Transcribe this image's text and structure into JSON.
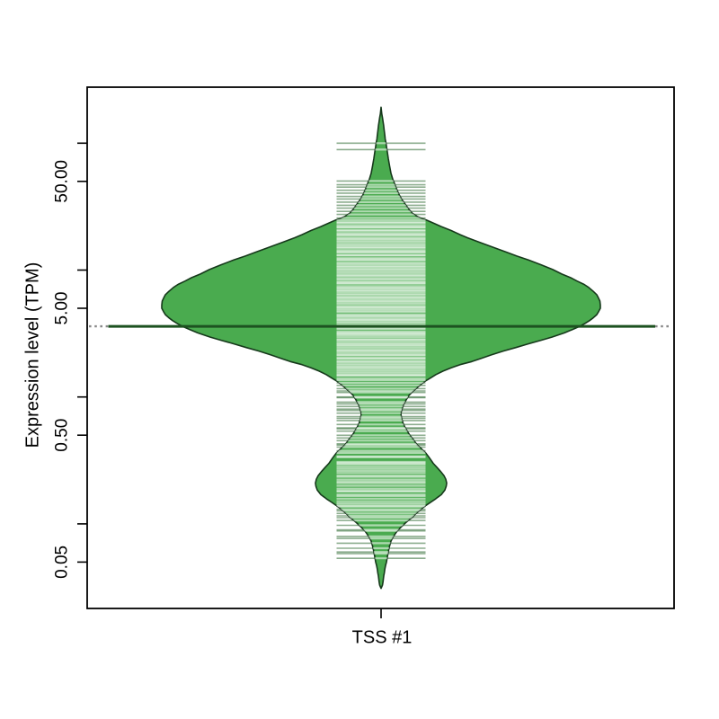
{
  "chart_data": {
    "type": "violin",
    "title": "",
    "categories": [
      "TSS #1"
    ],
    "y_axis": {
      "label": "Expression level (TPM)",
      "scale": "log10",
      "range_tpm": [
        0.03,
        220
      ],
      "ticks": [
        {
          "value": 100,
          "label": ""
        },
        {
          "value": 50,
          "label": "50.00"
        },
        {
          "value": 10,
          "label": ""
        },
        {
          "value": 5,
          "label": "5.00"
        },
        {
          "value": 1,
          "label": ""
        },
        {
          "value": 0.5,
          "label": "0.50"
        },
        {
          "value": 0.1,
          "label": ""
        },
        {
          "value": 0.05,
          "label": "0.05"
        }
      ]
    },
    "x_axis": {
      "category": "TSS #1"
    },
    "series": [
      {
        "name": "TSS #1",
        "median_tpm": 3.6,
        "violin_profile_tpm_halfwidth": [
          [
            192,
            0
          ],
          [
            170,
            0.8
          ],
          [
            160,
            1.5
          ],
          [
            148,
            2.2
          ],
          [
            139,
            2.8
          ],
          [
            126,
            3.5
          ],
          [
            115,
            4.2
          ],
          [
            108,
            4.6
          ],
          [
            100,
            5.5
          ],
          [
            92,
            6.2
          ],
          [
            85,
            7
          ],
          [
            76,
            8
          ],
          [
            66,
            9.5
          ],
          [
            58,
            11
          ],
          [
            52,
            13
          ],
          [
            47,
            15.5
          ],
          [
            44,
            17
          ],
          [
            40,
            19.5
          ],
          [
            36,
            23
          ],
          [
            33,
            27
          ],
          [
            30,
            31
          ],
          [
            28,
            35
          ],
          [
            26.5,
            40
          ],
          [
            25.5,
            45
          ],
          [
            24.9,
            50
          ],
          [
            23.5,
            58
          ],
          [
            22,
            67
          ],
          [
            20.5,
            78
          ],
          [
            19,
            88
          ],
          [
            18,
            96
          ],
          [
            16.5,
            110
          ],
          [
            15,
            126
          ],
          [
            13.8,
            140
          ],
          [
            12.9,
            151
          ],
          [
            12,
            164
          ],
          [
            11,
            178
          ],
          [
            10.1,
            191
          ],
          [
            9.3,
            201
          ],
          [
            8.7,
            211
          ],
          [
            8.2,
            218
          ],
          [
            7.7,
            226
          ],
          [
            7.3,
            231
          ],
          [
            6.8,
            236
          ],
          [
            6.4,
            240
          ],
          [
            6.0,
            242
          ],
          [
            5.7,
            243.5
          ],
          [
            5.3,
            244
          ],
          [
            5.0,
            244
          ],
          [
            4.7,
            242
          ],
          [
            4.45,
            240
          ],
          [
            4.2,
            236
          ],
          [
            4.0,
            232
          ],
          [
            3.8,
            227
          ],
          [
            3.6,
            221
          ],
          [
            3.4,
            213
          ],
          [
            3.2,
            204
          ],
          [
            3.08,
            197
          ],
          [
            2.96,
            190
          ],
          [
            2.8,
            178
          ],
          [
            2.6,
            162
          ],
          [
            2.45,
            150
          ],
          [
            2.3,
            136
          ],
          [
            2.15,
            123
          ],
          [
            2.0,
            110
          ],
          [
            1.9,
            101
          ],
          [
            1.8,
            88
          ],
          [
            1.7,
            78
          ],
          [
            1.6,
            69
          ],
          [
            1.5,
            61
          ],
          [
            1.41,
            55
          ],
          [
            1.33,
            49
          ],
          [
            1.25,
            44
          ],
          [
            1.18,
            40
          ],
          [
            1.1,
            35
          ],
          [
            1.03,
            31
          ],
          [
            0.95,
            28
          ],
          [
            0.87,
            25
          ],
          [
            0.8,
            23.2
          ],
          [
            0.74,
            22
          ],
          [
            0.68,
            22.8
          ],
          [
            0.62,
            24.5
          ],
          [
            0.58,
            26.5
          ],
          [
            0.54,
            29
          ],
          [
            0.5,
            32
          ],
          [
            0.46,
            36
          ],
          [
            0.42,
            40
          ],
          [
            0.39,
            45
          ],
          [
            0.36,
            50
          ],
          [
            0.33,
            54
          ],
          [
            0.3,
            58
          ],
          [
            0.28,
            62
          ],
          [
            0.26,
            66
          ],
          [
            0.24,
            70
          ],
          [
            0.225,
            72
          ],
          [
            0.21,
            73
          ],
          [
            0.198,
            72.5
          ],
          [
            0.185,
            71
          ],
          [
            0.17,
            67
          ],
          [
            0.162,
            63
          ],
          [
            0.156,
            60
          ],
          [
            0.148,
            55
          ],
          [
            0.14,
            50
          ],
          [
            0.133,
            46
          ],
          [
            0.126,
            42
          ],
          [
            0.119,
            38
          ],
          [
            0.113,
            35
          ],
          [
            0.106,
            30
          ],
          [
            0.1,
            26
          ],
          [
            0.094,
            22
          ],
          [
            0.088,
            18
          ],
          [
            0.082,
            15
          ],
          [
            0.078,
            13
          ],
          [
            0.073,
            11
          ],
          [
            0.069,
            10
          ],
          [
            0.064,
            8.8
          ],
          [
            0.06,
            8
          ],
          [
            0.057,
            7.4
          ],
          [
            0.055,
            7
          ],
          [
            0.052,
            6.4
          ],
          [
            0.05,
            6
          ],
          [
            0.047,
            5
          ],
          [
            0.044,
            4.2
          ],
          [
            0.041,
            3.6
          ],
          [
            0.039,
            3
          ],
          [
            0.037,
            2.6
          ],
          [
            0.035,
            2.2
          ],
          [
            0.033,
            1.6
          ],
          [
            0.032,
            0.8
          ],
          [
            0.031,
            0
          ]
        ],
        "rug": {
          "outlier_tpm": [
            100,
            89
          ],
          "bands": [
            {
              "from_tpm": 50,
              "to_tpm": 24.5,
              "count": 14,
              "jitter_log10": 0.004
            },
            {
              "from_tpm": 24,
              "to_tpm": 1.46,
              "count": 100,
              "jitter_log10": 0.004
            },
            {
              "from_tpm": 1.42,
              "to_tpm": 0.3,
              "count": 34,
              "jitter_log10": 0.01
            },
            {
              "from_tpm": 0.295,
              "to_tpm": 0.112,
              "count": 26,
              "jitter_log10": 0.007
            },
            {
              "from_tpm": 0.105,
              "to_tpm": 0.054,
              "count": 11,
              "jitter_log10": 0.012
            }
          ]
        }
      }
    ],
    "colors": {
      "violin_fill": "#4aab4f",
      "violin_outline": "#16391b",
      "median_line": "#1d5220",
      "median_dotted_ends": "#8a8a8a",
      "rug_line": "#1b5e20",
      "rug_line_alpha": 0.5,
      "overlay_line": "#ffffff",
      "overlay_line_alpha": 0.55,
      "frame": "#000000",
      "text": "#000000",
      "background": "#ffffff"
    }
  }
}
